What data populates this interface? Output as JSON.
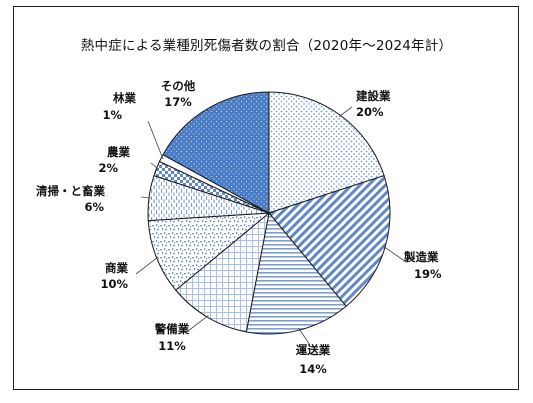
{
  "chart_data": {
    "type": "pie",
    "title": "熱中症による業種別死傷者数の割合（2020年～2024年計）",
    "start_angle_deg": 0,
    "direction": "clockwise",
    "slices": [
      {
        "name": "建設業",
        "value": 20,
        "label": "20%",
        "color": "#9db8e0",
        "pattern": "dots"
      },
      {
        "name": "製造業",
        "value": 19,
        "label": "19%",
        "color": "#6f93cf",
        "pattern": "diag"
      },
      {
        "name": "運送業",
        "value": 14,
        "label": "14%",
        "color": "#86a6d8",
        "pattern": "horiz"
      },
      {
        "name": "警備業",
        "value": 11,
        "label": "11%",
        "color": "#a9c0e4",
        "pattern": "grid"
      },
      {
        "name": "商業",
        "value": 10,
        "label": "10%",
        "color": "#9db8e0",
        "pattern": "confetti"
      },
      {
        "name": "清掃・と畜業",
        "value": 6,
        "label": "6%",
        "color": "#9db8e0",
        "pattern": "vdash"
      },
      {
        "name": "農業",
        "value": 2,
        "label": "2%",
        "color": "#7ea0d6",
        "pattern": "checker"
      },
      {
        "name": "林業",
        "value": 1,
        "label": "1%",
        "color": "#ffffff",
        "pattern": "none"
      },
      {
        "name": "その他",
        "value": 17,
        "label": "17%",
        "color": "#4a7cc6",
        "pattern": "dotsdark"
      }
    ]
  }
}
